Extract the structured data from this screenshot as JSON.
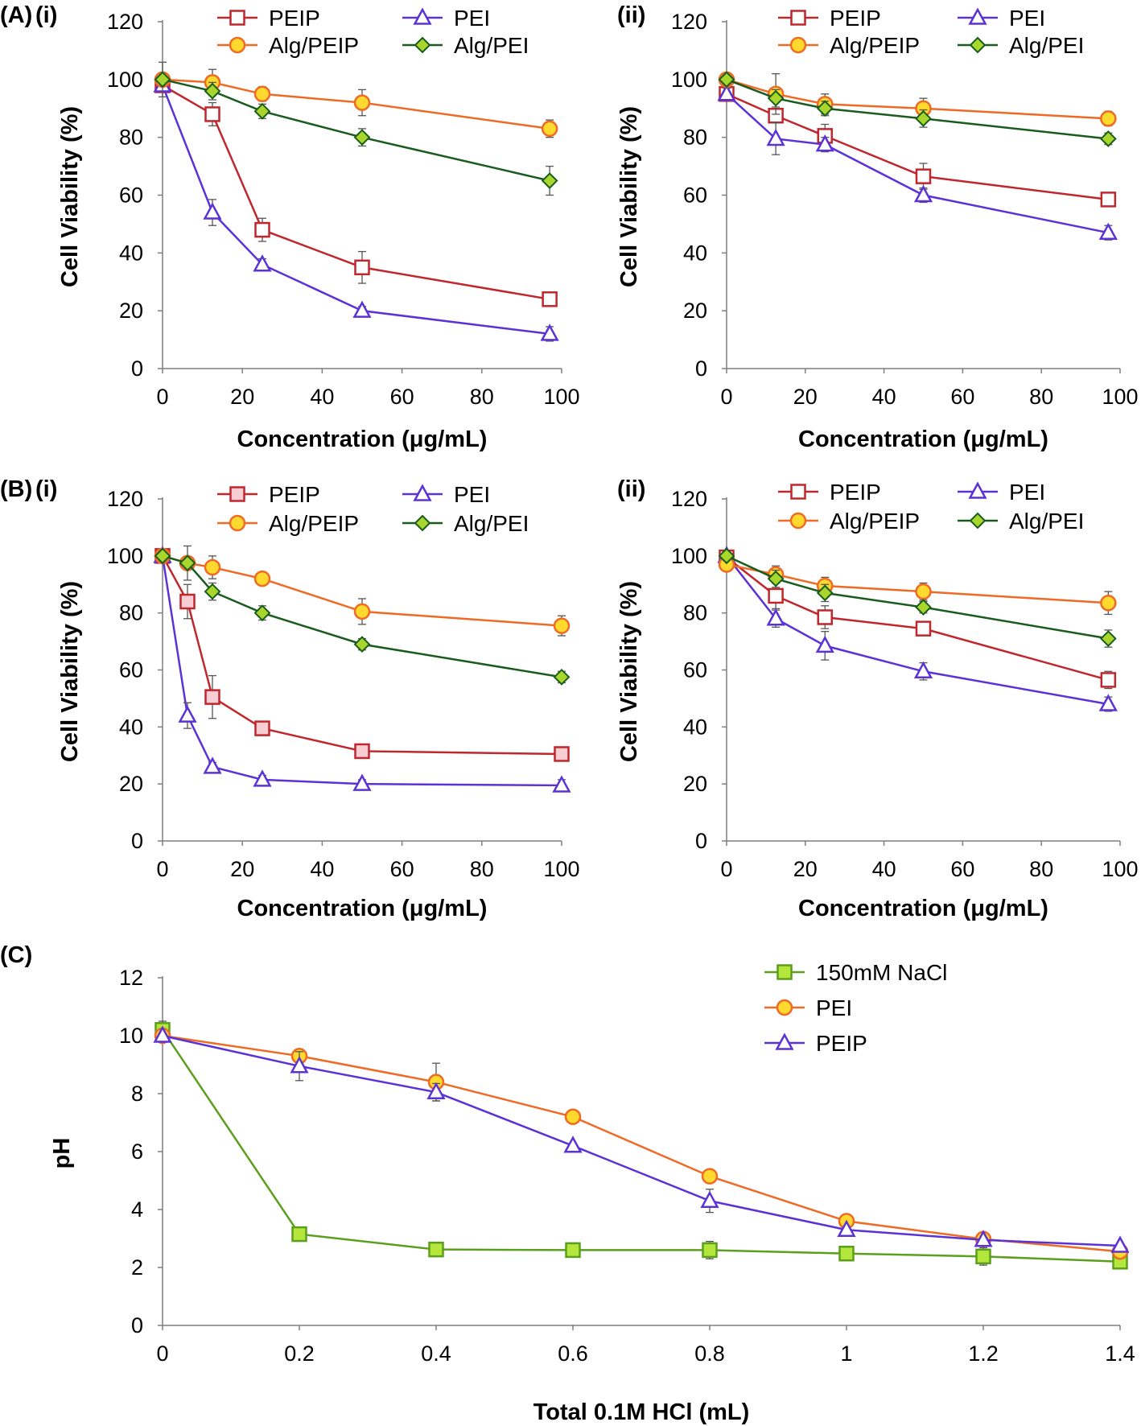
{
  "figure": {
    "panel_labels": [
      "(A)",
      "(i)",
      "(ii)",
      "(B)",
      "(i)",
      "(ii)",
      "(C)"
    ]
  },
  "chart_data": [
    {
      "id": "A-i",
      "type": "line",
      "xlabel": "Concentration (μg/mL)",
      "ylabel": "Cell Viability (%)",
      "xlim": [
        0,
        100
      ],
      "ylim": [
        0,
        120
      ],
      "xticks": [
        0,
        20,
        40,
        60,
        80,
        100
      ],
      "yticks": [
        0,
        20,
        40,
        60,
        80,
        100,
        120
      ],
      "grid": false,
      "legend": "top-right, two columns",
      "series": [
        {
          "name": "PEIP",
          "marker": "square",
          "color": "#c0272d",
          "fill": "#ffffff",
          "x": [
            0,
            12.5,
            25,
            50,
            97
          ],
          "y": [
            98,
            88,
            48,
            35,
            24
          ],
          "err": [
            2,
            4,
            4,
            5.5,
            1.5
          ]
        },
        {
          "name": "PEI",
          "marker": "triangle",
          "color": "#5b32d6",
          "fill": "#ffffff",
          "x": [
            0,
            12.5,
            25,
            50,
            97
          ],
          "y": [
            98,
            54,
            36,
            20,
            12
          ],
          "err": [
            2,
            4.5,
            2,
            1.5,
            2.5
          ]
        },
        {
          "name": "Alg/PEIP",
          "marker": "circle",
          "color": "#ee6a25",
          "fill": "#ffd92e",
          "x": [
            0,
            12.5,
            25,
            50,
            97
          ],
          "y": [
            100,
            99,
            95,
            92,
            83
          ],
          "err": [
            2,
            4.5,
            2.5,
            4.5,
            3
          ]
        },
        {
          "name": "Alg/PEI",
          "marker": "diamond",
          "color": "#1a5c1e",
          "fill": "#a9d62d",
          "x": [
            0,
            12.5,
            25,
            50,
            97
          ],
          "y": [
            100,
            96,
            89,
            80,
            65
          ],
          "err": [
            6,
            3,
            2.5,
            3,
            5
          ]
        }
      ]
    },
    {
      "id": "A-ii",
      "type": "line",
      "xlabel": "Concentration (μg/mL)",
      "ylabel": "Cell Viability (%)",
      "xlim": [
        0,
        100
      ],
      "ylim": [
        0,
        120
      ],
      "xticks": [
        0,
        20,
        40,
        60,
        80,
        100
      ],
      "yticks": [
        0,
        20,
        40,
        60,
        80,
        100,
        120
      ],
      "grid": false,
      "legend": "top-right, two columns",
      "series": [
        {
          "name": "PEIP",
          "marker": "square",
          "color": "#c0272d",
          "fill": "#ffffff",
          "x": [
            0,
            12.5,
            25,
            50,
            97
          ],
          "y": [
            95,
            87.5,
            80.5,
            66.5,
            58.5
          ],
          "err": [
            2,
            2.5,
            4,
            4.5,
            2
          ]
        },
        {
          "name": "PEI",
          "marker": "triangle",
          "color": "#5b32d6",
          "fill": "#ffffff",
          "x": [
            0,
            12.5,
            25,
            50,
            97
          ],
          "y": [
            95,
            79.5,
            77.5,
            60,
            47
          ],
          "err": [
            2,
            5.5,
            2.5,
            2.5,
            2.5
          ]
        },
        {
          "name": "Alg/PEIP",
          "marker": "circle",
          "color": "#ee6a25",
          "fill": "#ffd92e",
          "x": [
            0,
            12.5,
            25,
            50,
            97
          ],
          "y": [
            100,
            95,
            91.5,
            90,
            86.5
          ],
          "err": [
            1.5,
            7,
            3.5,
            3.5,
            2.5
          ]
        },
        {
          "name": "Alg/PEI",
          "marker": "diamond",
          "color": "#1a5c1e",
          "fill": "#a9d62d",
          "x": [
            0,
            12.5,
            25,
            50,
            97
          ],
          "y": [
            100,
            93.5,
            90,
            86.5,
            79.5
          ],
          "err": [
            1.5,
            3,
            2.5,
            3,
            2
          ]
        }
      ]
    },
    {
      "id": "B-i",
      "type": "line",
      "xlabel": "Concentration (μg/mL)",
      "ylabel": "Cell Viability (%)",
      "xlim": [
        0,
        100
      ],
      "ylim": [
        0,
        120
      ],
      "xticks": [
        0,
        20,
        40,
        60,
        80,
        100
      ],
      "yticks": [
        0,
        20,
        40,
        60,
        80,
        100,
        120
      ],
      "grid": false,
      "legend": "top-right, two columns",
      "series": [
        {
          "name": "PEIP",
          "marker": "square",
          "color": "#c0272d",
          "fill": "#f8cdd4",
          "x": [
            0,
            6.25,
            12.5,
            25,
            50,
            100
          ],
          "y": [
            100,
            84,
            50.5,
            39.5,
            31.5,
            30.5
          ],
          "err": [
            1.5,
            6,
            7.5,
            2,
            1.5,
            1.5
          ]
        },
        {
          "name": "PEI",
          "marker": "triangle",
          "color": "#5b32d6",
          "fill": "#ffffff",
          "x": [
            0,
            6.25,
            12.5,
            25,
            50,
            100
          ],
          "y": [
            100,
            44,
            26,
            21.5,
            20,
            19.5
          ],
          "err": [
            1.5,
            4.5,
            1.5,
            1.5,
            1.5,
            2
          ]
        },
        {
          "name": "Alg/PEIP",
          "marker": "circle",
          "color": "#ee6a25",
          "fill": "#ffd92e",
          "x": [
            0,
            6.25,
            12.5,
            25,
            50,
            100
          ],
          "y": [
            100,
            97.5,
            96,
            92,
            80.5,
            75.5
          ],
          "err": [
            1.5,
            2,
            4,
            2,
            4.5,
            3.5
          ]
        },
        {
          "name": "Alg/PEI",
          "marker": "diamond",
          "color": "#1a5c1e",
          "fill": "#a9d62d",
          "x": [
            0,
            6.25,
            12.5,
            25,
            50,
            100
          ],
          "y": [
            100,
            97.5,
            87.5,
            80,
            69,
            57.5
          ],
          "err": [
            1.5,
            6,
            3,
            2.5,
            2,
            2
          ]
        }
      ]
    },
    {
      "id": "B-ii",
      "type": "line",
      "xlabel": "Concentration (μg/mL)",
      "ylabel": "Cell Viability (%)",
      "xlim": [
        0,
        100
      ],
      "ylim": [
        0,
        120
      ],
      "xticks": [
        0,
        20,
        40,
        60,
        80,
        100
      ],
      "yticks": [
        0,
        20,
        40,
        60,
        80,
        100,
        120
      ],
      "grid": false,
      "legend": "top-right, two columns",
      "series": [
        {
          "name": "PEIP",
          "marker": "square",
          "color": "#c0272d",
          "fill": "#ffffff",
          "x": [
            0,
            12.5,
            25,
            50,
            97
          ],
          "y": [
            99.5,
            86,
            78.5,
            74.5,
            56.5
          ],
          "err": [
            1.5,
            4.5,
            4,
            2,
            3
          ]
        },
        {
          "name": "PEI",
          "marker": "triangle",
          "color": "#5b32d6",
          "fill": "#ffffff",
          "x": [
            0,
            12.5,
            25,
            50,
            97
          ],
          "y": [
            100,
            78,
            68.5,
            59.5,
            48
          ],
          "err": [
            1.5,
            3,
            5,
            3,
            2.5
          ]
        },
        {
          "name": "Alg/PEIP",
          "marker": "circle",
          "color": "#ee6a25",
          "fill": "#ffd92e",
          "x": [
            0,
            12.5,
            25,
            50,
            97
          ],
          "y": [
            97,
            93.5,
            89.5,
            87.5,
            83.5
          ],
          "err": [
            1.5,
            3,
            3,
            3,
            4
          ]
        },
        {
          "name": "Alg/PEI",
          "marker": "diamond",
          "color": "#1a5c1e",
          "fill": "#a9d62d",
          "x": [
            0,
            12.5,
            25,
            50,
            97
          ],
          "y": [
            100,
            92,
            87,
            82,
            71
          ],
          "err": [
            1.5,
            3,
            3,
            2,
            3
          ]
        }
      ]
    },
    {
      "id": "C",
      "type": "line",
      "xlabel": "Total 0.1M HCl (mL)",
      "ylabel": "pH",
      "xlim": [
        0,
        1.4
      ],
      "ylim": [
        0,
        12
      ],
      "xticks": [
        0,
        0.2,
        0.4,
        0.6,
        0.8,
        1,
        1.2,
        1.4
      ],
      "yticks": [
        0,
        2,
        4,
        6,
        8,
        10,
        12
      ],
      "grid": false,
      "legend": "top-right, one column",
      "series": [
        {
          "name": "150mM NaCl",
          "marker": "square",
          "color": "#5c9e1e",
          "fill": "#b5e63c",
          "x": [
            0,
            0.2,
            0.4,
            0.6,
            0.8,
            1.0,
            1.2,
            1.4
          ],
          "y": [
            10.2,
            3.15,
            2.62,
            2.6,
            2.6,
            2.48,
            2.38,
            2.2
          ],
          "err": [
            0.3,
            0,
            0,
            0,
            0.3,
            0,
            0.3,
            0
          ]
        },
        {
          "name": "PEI",
          "marker": "circle",
          "color": "#ee6a25",
          "fill": "#ffd92e",
          "x": [
            0,
            0.2,
            0.4,
            0.6,
            0.8,
            1.0,
            1.2,
            1.4
          ],
          "y": [
            10.0,
            9.3,
            8.4,
            7.2,
            5.15,
            3.6,
            2.98,
            2.55
          ],
          "err": [
            0,
            0,
            0.65,
            0,
            0,
            0,
            0,
            0
          ]
        },
        {
          "name": "PEIP",
          "marker": "triangle",
          "color": "#5b32d6",
          "fill": "#ffffff",
          "x": [
            0,
            0.2,
            0.4,
            0.6,
            0.8,
            1.0,
            1.2,
            1.4
          ],
          "y": [
            10.0,
            8.95,
            8.05,
            6.2,
            4.3,
            3.3,
            2.95,
            2.75
          ],
          "err": [
            0,
            0.5,
            0.3,
            0,
            0.4,
            0,
            0,
            0
          ]
        }
      ]
    }
  ]
}
